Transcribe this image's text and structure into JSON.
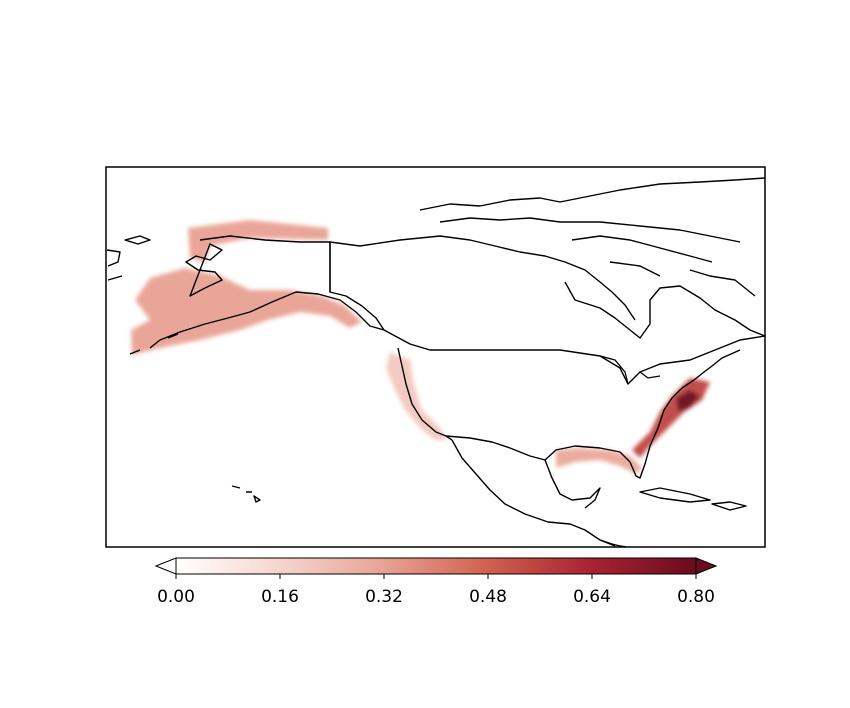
{
  "map": {
    "colormap": [
      "#ffffff",
      "#f6d5cd",
      "#e8a293",
      "#d1604f",
      "#a82331",
      "#6b0b1f"
    ],
    "frame_color": "#000000",
    "coastline_color": "#000000",
    "regions": [
      {
        "name": "alaska-and-aleutians-shelf",
        "level": 0.32
      },
      {
        "name": "pacific-northwest-and-california-coast",
        "level": 0.2
      },
      {
        "name": "gulf-of-mexico-coast",
        "level": 0.3
      },
      {
        "name": "us-east-coast",
        "level": 0.55
      },
      {
        "name": "chesapeake-delaware-bays",
        "level": 0.8
      }
    ]
  },
  "colorbar": {
    "ticks": [
      "0.00",
      "0.16",
      "0.32",
      "0.48",
      "0.64",
      "0.80"
    ],
    "min": 0.0,
    "max": 0.8,
    "extend": "both"
  }
}
